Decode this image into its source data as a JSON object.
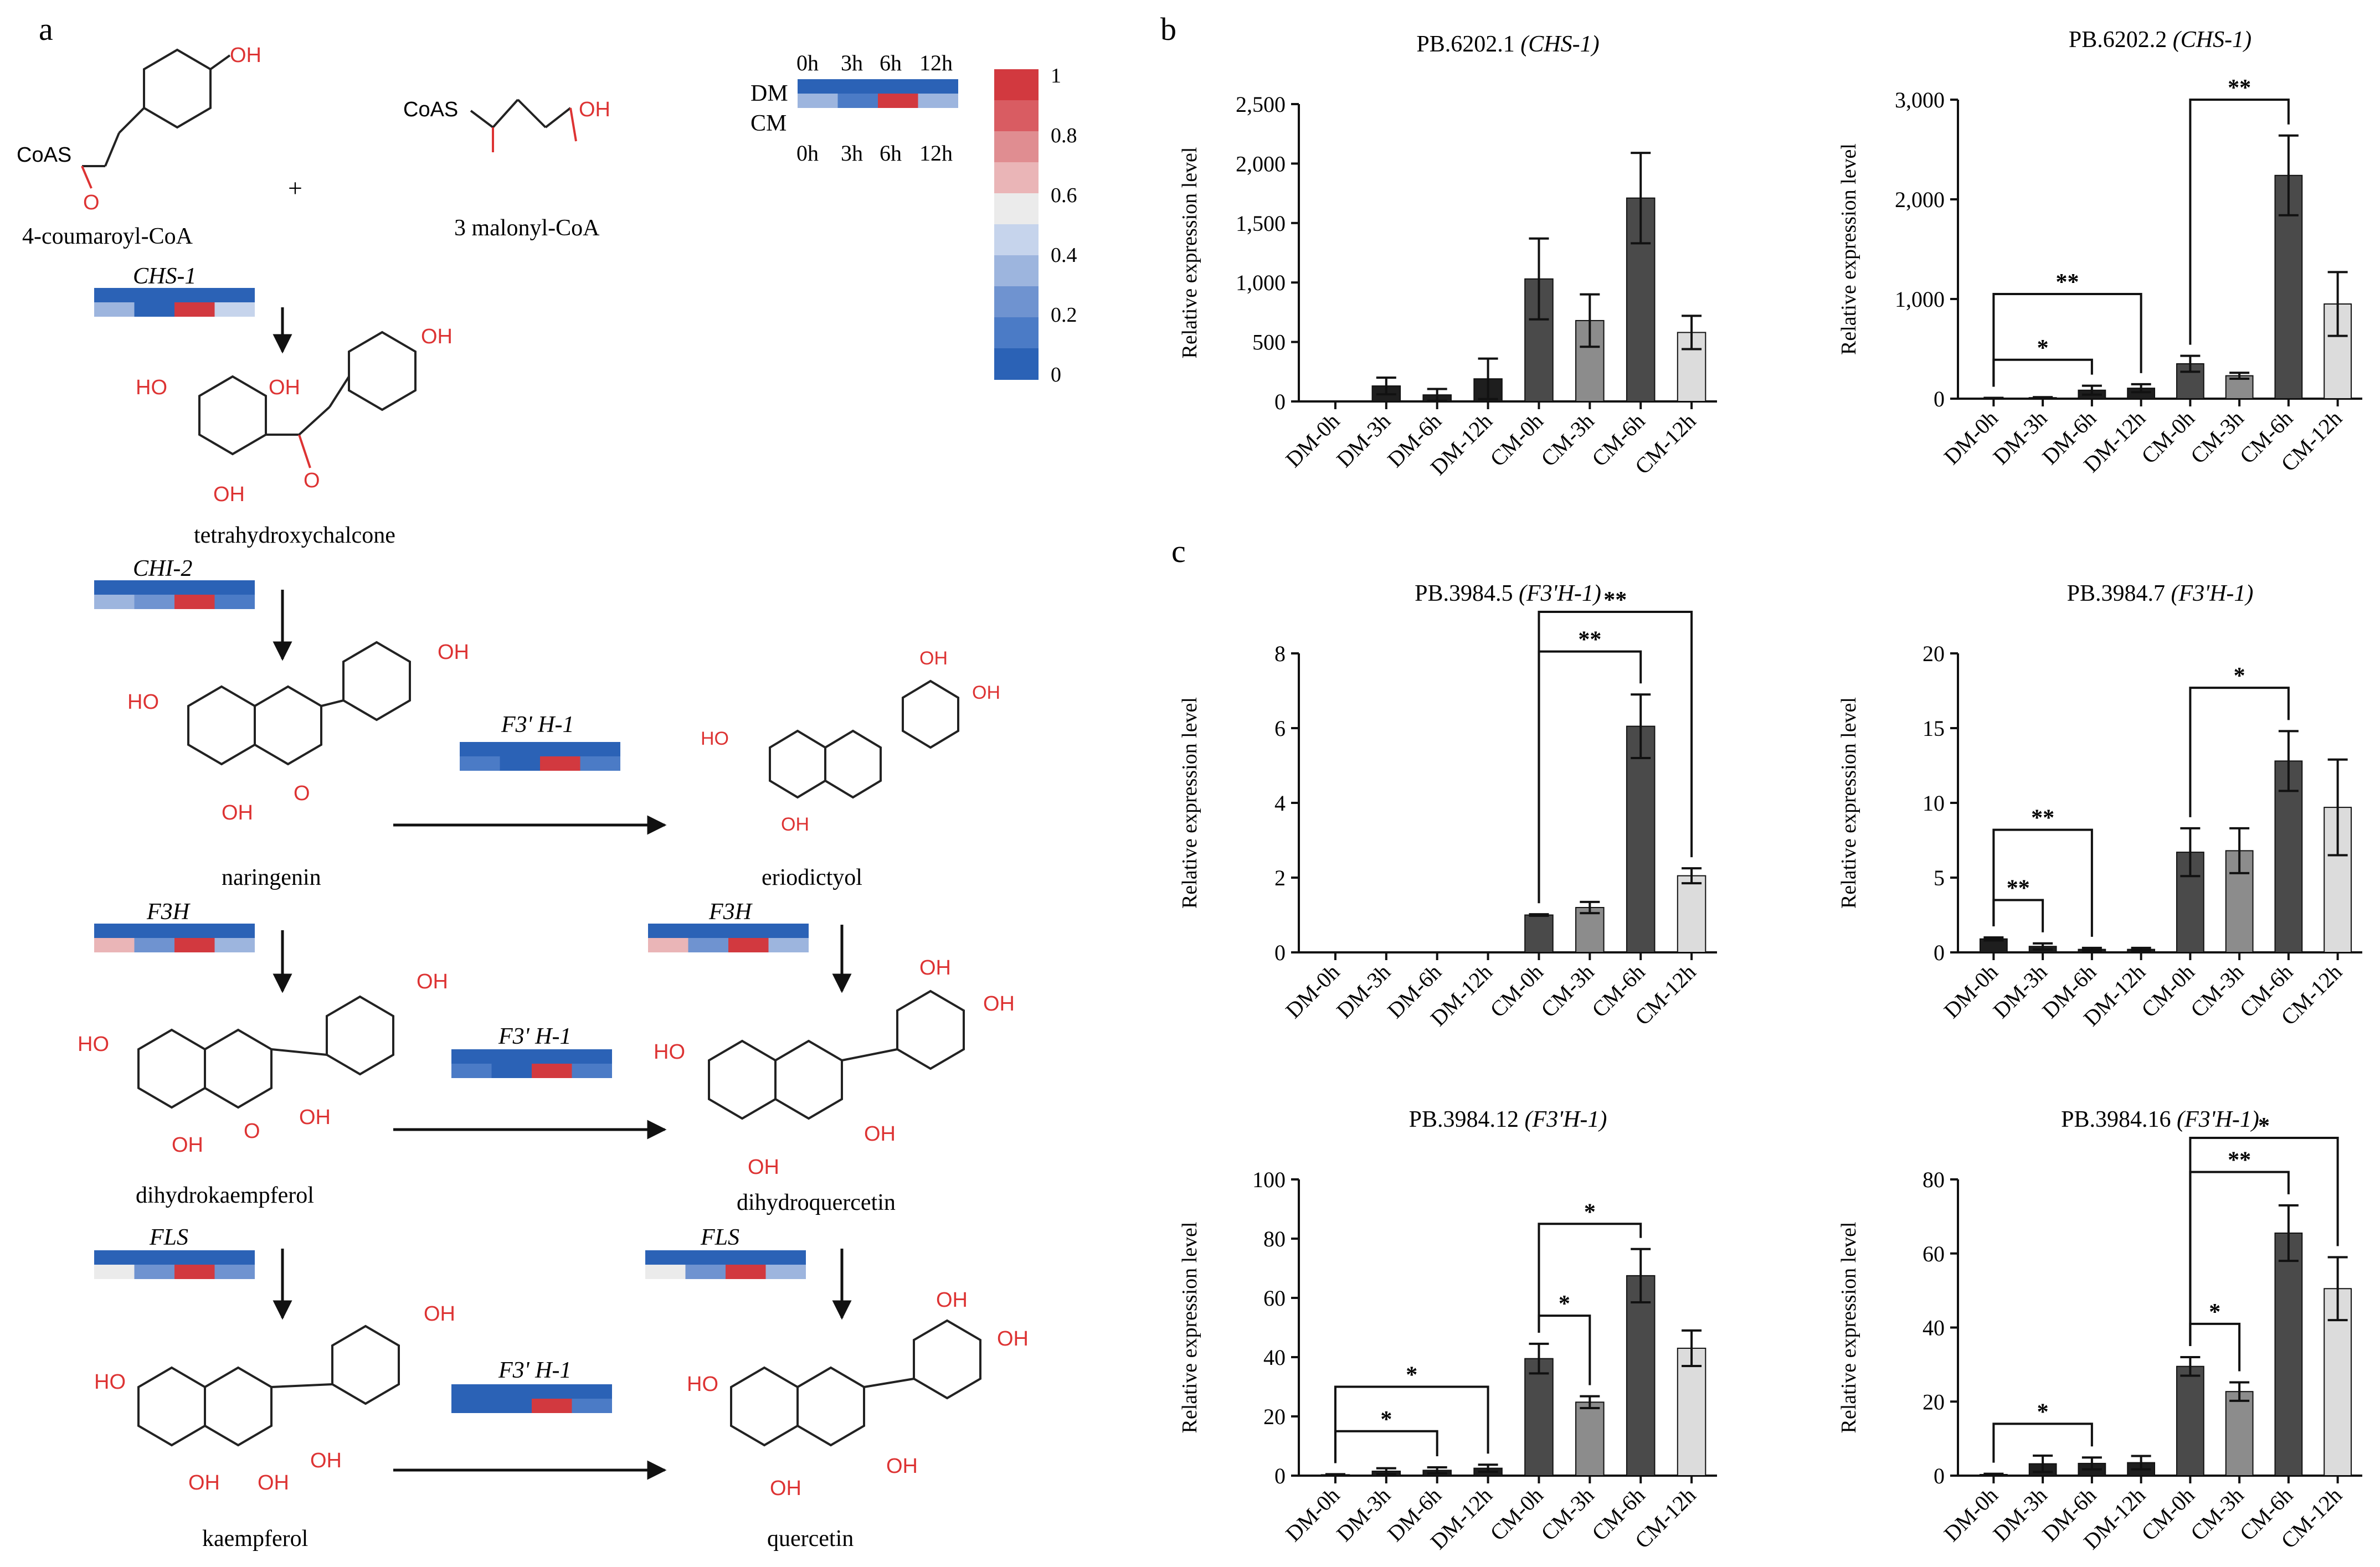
{
  "panel_labels": {
    "a": "a",
    "b": "b",
    "c": "c"
  },
  "heatmap_legend": {
    "row_dm": "DM",
    "row_cm": "CM",
    "times": [
      "0h",
      "3h",
      "6h",
      "12h"
    ],
    "scale_ticks": [
      "1",
      "0.8",
      "0.6",
      "0.4",
      "0.2",
      "0"
    ],
    "colors": [
      "#2b62b6",
      "#4b7bc6",
      "#6f93d0",
      "#9db5de",
      "#c6d4ec",
      "#ebebeb",
      "#eab5b7",
      "#e08d91",
      "#d95c62",
      "#d2393f"
    ]
  },
  "pathway": {
    "substrate1": "4-coumaroyl-CoA",
    "plus": "+",
    "substrate2": "3 malonyl-CoA",
    "coas": "CoAS",
    "oh": "OH",
    "ho": "HO",
    "o": "O",
    "products": {
      "chalcone": "tetrahydroxychalcone",
      "naringenin": "naringenin",
      "eriodictyol": "eriodictyol",
      "dihydrokaempferol": "dihydrokaempferol",
      "dihydroquercetin": "dihydroquercetin",
      "kaempferol": "kaempferol",
      "quercetin": "quercetin"
    },
    "enzymes": {
      "chs": "CHS-1",
      "chi": "CHI-2",
      "f3h_1": "F3H",
      "f3h_2": "F3H",
      "fls_1": "FLS",
      "fls_2": "FLS",
      "f3ph_1": "F3' H-1",
      "f3ph_2": "F3' H-1",
      "f3ph_3": "F3' H-1"
    },
    "heatmap_levels": {
      "legend": {
        "dm": [
          0,
          0,
          0,
          0
        ],
        "cm": [
          0.33,
          0.1,
          1,
          0.33
        ]
      },
      "chs": {
        "dm": [
          0,
          0,
          0,
          0
        ],
        "cm": [
          0.3,
          0.05,
          1,
          0.4
        ]
      },
      "chi": {
        "dm": [
          0,
          0,
          0,
          0
        ],
        "cm": [
          0.35,
          0.2,
          1,
          0.1
        ]
      },
      "f3ph_1": {
        "dm": [
          0,
          0,
          0.05,
          0
        ],
        "cm": [
          0.1,
          0.05,
          1,
          0.1
        ]
      },
      "f3h_1": {
        "dm": [
          0,
          0,
          0,
          0
        ],
        "cm": [
          0.7,
          0.2,
          1,
          0.3
        ]
      },
      "f3h_2": {
        "dm": [
          0,
          0,
          0,
          0
        ],
        "cm": [
          0.7,
          0.2,
          1,
          0.3
        ]
      },
      "f3ph_2": {
        "dm": [
          0,
          0,
          0,
          0
        ],
        "cm": [
          0.1,
          0.05,
          1,
          0.1
        ]
      },
      "fls_1": {
        "dm": [
          0,
          0,
          0,
          0
        ],
        "cm": [
          0.5,
          0.2,
          1,
          0.2
        ]
      },
      "fls_2": {
        "dm": [
          0,
          0,
          0,
          0
        ],
        "cm": [
          0.55,
          0.2,
          1,
          0.3
        ]
      },
      "f3ph_3": {
        "dm": [
          0,
          0,
          0,
          0
        ],
        "cm": [
          0.05,
          0.05,
          1,
          0.1
        ]
      }
    }
  },
  "chart_data": [
    {
      "type": "bar",
      "title_id": "PB.6202.1",
      "title_gene": "(CHS-1)",
      "ylabel": "Relative expression level",
      "categories": [
        "DM-0h",
        "DM-3h",
        "DM-6h",
        "DM-12h",
        "CM-0h",
        "CM-3h",
        "CM-6h",
        "CM-12h"
      ],
      "values": [
        0,
        130,
        55,
        190,
        1030,
        680,
        1710,
        580
      ],
      "errors": [
        0,
        70,
        50,
        170,
        340,
        220,
        380,
        140
      ],
      "ylim": [
        0,
        2500
      ],
      "yticks": [
        0,
        500,
        1000,
        1500,
        2000,
        2500
      ],
      "ytick_labels": [
        "0",
        "500",
        "1,000",
        "1,500",
        "2,000",
        "2,500"
      ],
      "significance": []
    },
    {
      "type": "bar",
      "title_id": "PB.6202.2",
      "title_gene": "(CHS-1)",
      "ylabel": "Relative expression level",
      "categories": [
        "DM-0h",
        "DM-3h",
        "DM-6h",
        "DM-12h",
        "CM-0h",
        "CM-3h",
        "CM-6h",
        "CM-12h"
      ],
      "values": [
        5,
        10,
        85,
        105,
        350,
        230,
        2240,
        950
      ],
      "errors": [
        3,
        5,
        45,
        40,
        80,
        30,
        400,
        320
      ],
      "ylim": [
        0,
        3000
      ],
      "yticks": [
        0,
        1000,
        2000,
        3000
      ],
      "ytick_labels": [
        "0",
        "1,000",
        "2,000",
        "3,000"
      ],
      "significance": [
        {
          "from": 0,
          "to": 2,
          "y": 390,
          "label": "*"
        },
        {
          "from": 0,
          "to": 3,
          "y": 1050,
          "label": "**"
        },
        {
          "from": 4,
          "to": 6,
          "y": 3000,
          "label": "**"
        }
      ]
    },
    {
      "type": "bar",
      "title_id": "PB.3984.5",
      "title_gene": "(F3'H-1)",
      "ylabel": "Relative expression level",
      "categories": [
        "DM-0h",
        "DM-3h",
        "DM-6h",
        "DM-12h",
        "CM-0h",
        "CM-3h",
        "CM-6h",
        "CM-12h"
      ],
      "values": [
        0,
        0,
        0,
        0,
        1.0,
        1.2,
        6.05,
        2.05
      ],
      "errors": [
        0,
        0,
        0,
        0,
        0.02,
        0.15,
        0.85,
        0.2
      ],
      "ylim": [
        0,
        8
      ],
      "yticks": [
        0,
        2,
        4,
        6,
        8
      ],
      "ytick_labels": [
        "0",
        "2",
        "4",
        "6",
        "8"
      ],
      "significance": [
        {
          "from": 4,
          "to": 6,
          "y": 8.05,
          "label": "**"
        },
        {
          "from": 4,
          "to": 7,
          "y": 9.35,
          "label": "**"
        }
      ]
    },
    {
      "type": "bar",
      "title_id": "PB.3984.7",
      "title_gene": "(F3'H-1)",
      "ylabel": "Relative expression level",
      "categories": [
        "DM-0h",
        "DM-3h",
        "DM-6h",
        "DM-12h",
        "CM-0h",
        "CM-3h",
        "CM-6h",
        "CM-12h"
      ],
      "values": [
        0.9,
        0.4,
        0.2,
        0.2,
        6.7,
        6.8,
        12.8,
        9.7
      ],
      "errors": [
        0.1,
        0.2,
        0.1,
        0.1,
        1.6,
        1.5,
        2.0,
        3.2
      ],
      "ylim": [
        0,
        20
      ],
      "yticks": [
        0,
        5,
        10,
        15,
        20
      ],
      "ytick_labels": [
        "0",
        "5",
        "10",
        "15",
        "20"
      ],
      "significance": [
        {
          "from": 0,
          "to": 1,
          "y": 3.5,
          "label": "**"
        },
        {
          "from": 0,
          "to": 2,
          "y": 8.2,
          "label": "**"
        },
        {
          "from": 4,
          "to": 6,
          "y": 17.7,
          "label": "*"
        }
      ]
    },
    {
      "type": "bar",
      "title_id": "PB.3984.12",
      "title_gene": "(F3'H-1)",
      "ylabel": "Relative expression level",
      "categories": [
        "DM-0h",
        "DM-3h",
        "DM-6h",
        "DM-12h",
        "CM-0h",
        "CM-3h",
        "CM-6h",
        "CM-12h"
      ],
      "values": [
        0.3,
        1.5,
        1.8,
        2.5,
        39.5,
        24.8,
        67.5,
        43
      ],
      "errors": [
        0.2,
        1.0,
        1.0,
        1.2,
        5.0,
        2.0,
        9.0,
        6.0
      ],
      "ylim": [
        0,
        100
      ],
      "yticks": [
        0,
        20,
        40,
        60,
        80,
        100
      ],
      "ytick_labels": [
        "0",
        "20",
        "40",
        "60",
        "80",
        "100"
      ],
      "significance": [
        {
          "from": 0,
          "to": 2,
          "y": 15,
          "label": "*"
        },
        {
          "from": 0,
          "to": 3,
          "y": 30,
          "label": "*"
        },
        {
          "from": 4,
          "to": 5,
          "y": 54,
          "label": "*"
        },
        {
          "from": 4,
          "to": 6,
          "y": 85,
          "label": "*"
        }
      ]
    },
    {
      "type": "bar",
      "title_id": "PB.3984.16",
      "title_gene": "(F3'H-1)",
      "ylabel": "Relative expression level",
      "categories": [
        "DM-0h",
        "DM-3h",
        "DM-6h",
        "DM-12h",
        "CM-0h",
        "CM-3h",
        "CM-6h",
        "CM-12h"
      ],
      "values": [
        0.3,
        3.2,
        3.3,
        3.5,
        29.5,
        22.7,
        65.5,
        50.5
      ],
      "errors": [
        0.2,
        2.2,
        1.6,
        1.8,
        2.5,
        2.5,
        7.5,
        8.5
      ],
      "ylim": [
        0,
        80
      ],
      "yticks": [
        0,
        20,
        40,
        60,
        80
      ],
      "ytick_labels": [
        "0",
        "20",
        "40",
        "60",
        "80"
      ],
      "significance": [
        {
          "from": 0,
          "to": 2,
          "y": 14,
          "label": "*"
        },
        {
          "from": 4,
          "to": 5,
          "y": 41,
          "label": "*"
        },
        {
          "from": 4,
          "to": 6,
          "y": 82,
          "label": "**"
        },
        {
          "from": 4,
          "to": 7,
          "y": 93,
          "label": "*"
        }
      ],
      "note": "top bracket extends above plot area"
    }
  ],
  "bar_colors": [
    "#1e1e1e",
    "#1e1e1e",
    "#1e1e1e",
    "#1e1e1e",
    "#4a4a4a",
    "#8c8c8c",
    "#4a4a4a",
    "#dcdcdc"
  ]
}
